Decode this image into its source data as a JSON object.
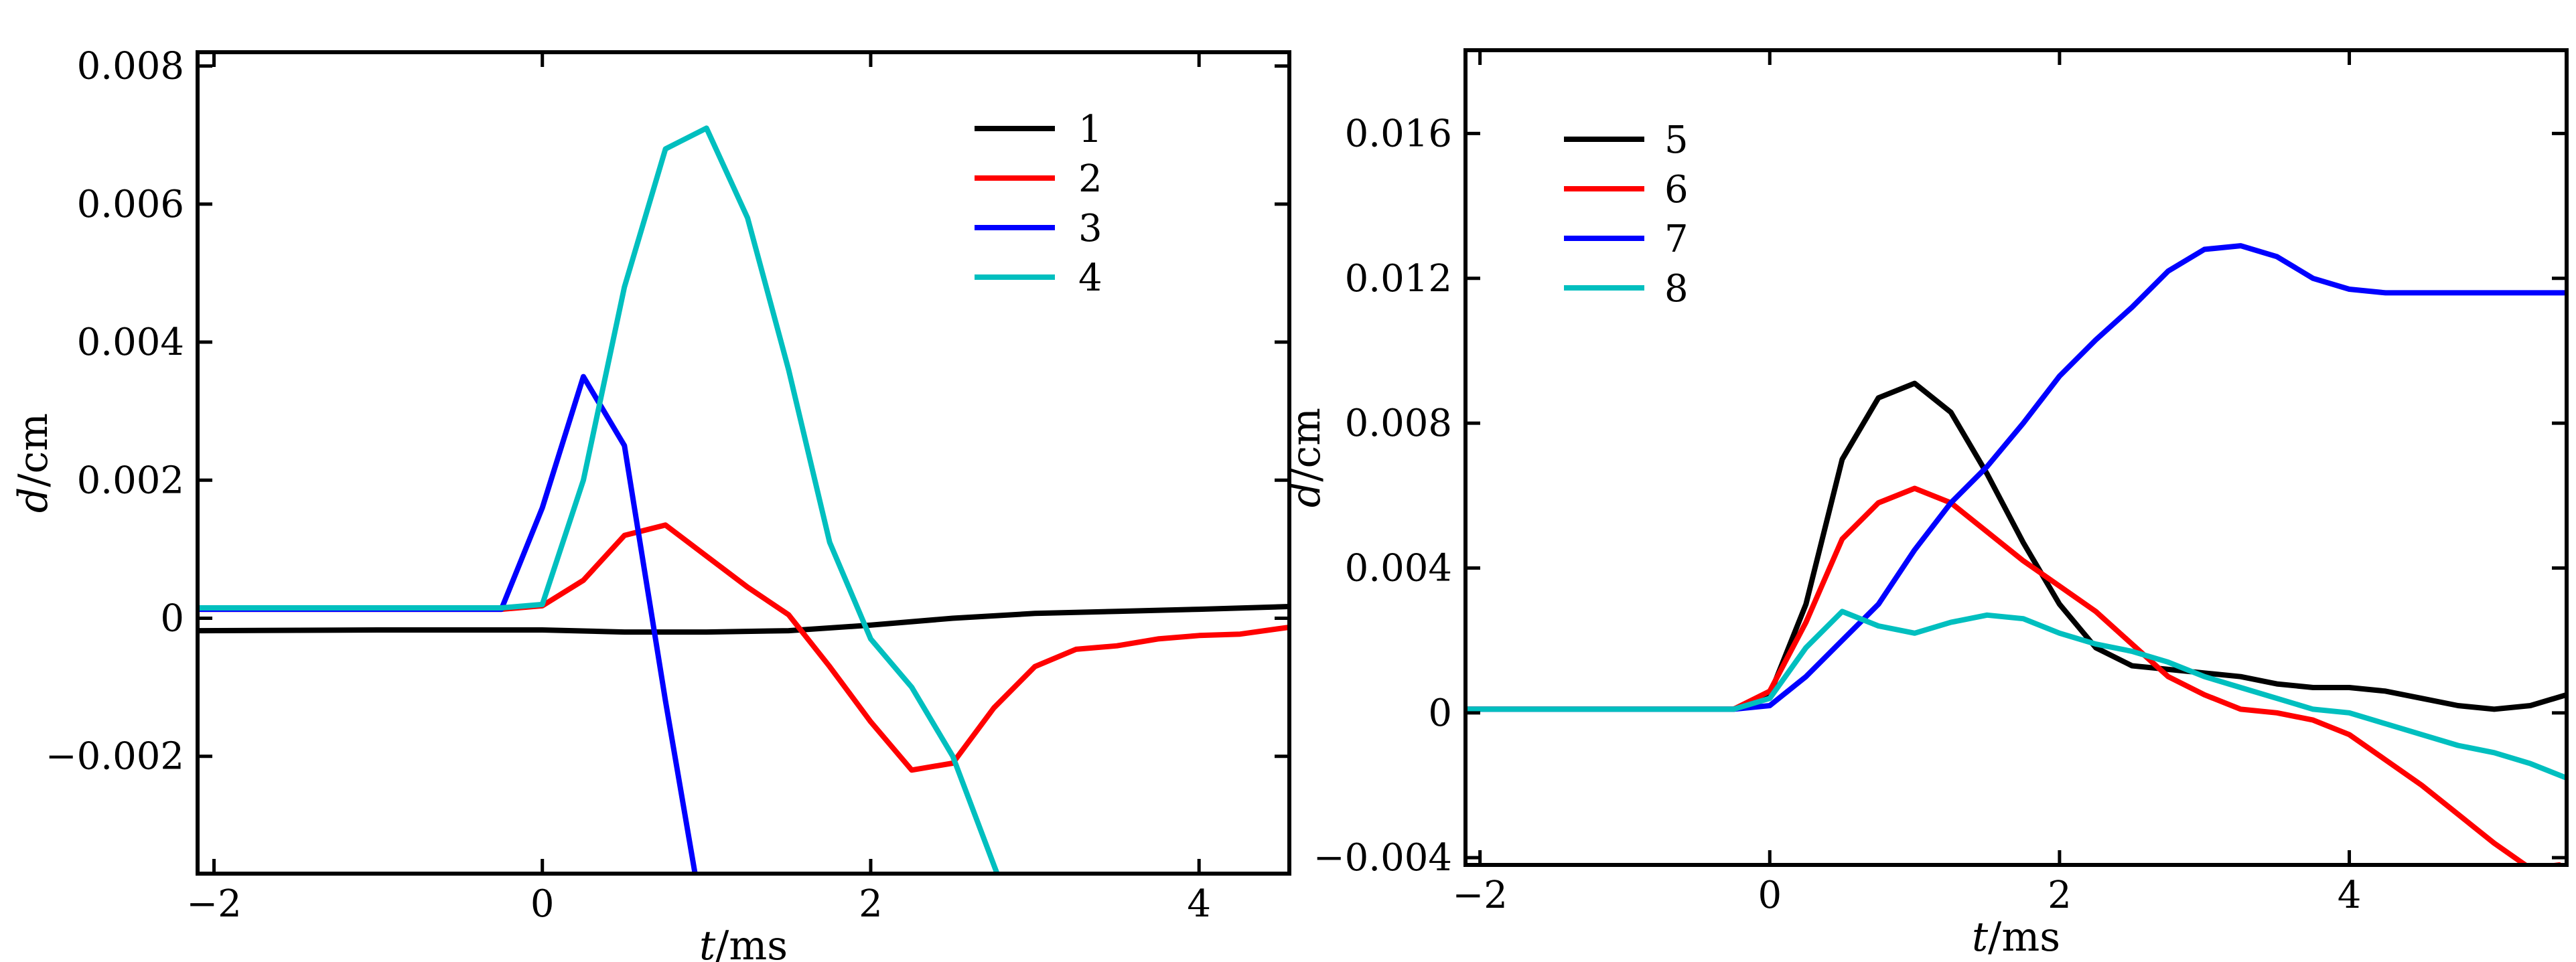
{
  "chart_data": [
    {
      "type": "line",
      "xlabel": "t/ms",
      "ylabel": "d/cm",
      "xlim": [
        -2.1,
        4.55
      ],
      "ylim": [
        -0.0037,
        0.0082
      ],
      "xticks": [
        -2,
        0,
        2,
        4
      ],
      "xtick_labels": [
        "−2",
        "0",
        "2",
        "4"
      ],
      "yticks": [
        -0.002,
        0,
        0.002,
        0.004,
        0.006,
        0.008
      ],
      "ytick_labels": [
        "−0.002",
        "0",
        "0.002",
        "0.004",
        "0.006",
        "0.008"
      ],
      "legend_position": "top-right",
      "series": [
        {
          "name": "1",
          "color": "#000000",
          "x": [
            -2.1,
            -1,
            0,
            0.5,
            1,
            1.5,
            2,
            2.5,
            3,
            3.5,
            4,
            4.55
          ],
          "y": [
            -0.00018,
            -0.00017,
            -0.00017,
            -0.0002,
            -0.0002,
            -0.00018,
            -0.0001,
            0.0,
            7e-05,
            0.0001,
            0.00013,
            0.00017
          ]
        },
        {
          "name": "2",
          "color": "#ff0000",
          "x": [
            -2.1,
            -1,
            -0.25,
            0,
            0.25,
            0.5,
            0.75,
            1,
            1.25,
            1.5,
            1.75,
            2,
            2.25,
            2.5,
            2.75,
            3,
            3.25,
            3.5,
            3.75,
            4,
            4.25,
            4.55
          ],
          "y": [
            0.00013,
            0.00013,
            0.00013,
            0.00018,
            0.00055,
            0.0012,
            0.00135,
            0.0009,
            0.00045,
            5e-05,
            -0.0007,
            -0.0015,
            -0.0022,
            -0.0021,
            -0.0013,
            -0.0007,
            -0.00045,
            -0.0004,
            -0.0003,
            -0.00025,
            -0.00023,
            -0.00013
          ]
        },
        {
          "name": "3",
          "color": "#0000ff",
          "x": [
            -2.1,
            -1,
            -0.25,
            0,
            0.25,
            0.5,
            0.75,
            0.93
          ],
          "y": [
            0.00013,
            0.00013,
            0.00013,
            0.0016,
            0.0035,
            0.0025,
            -0.0012,
            -0.0037
          ]
        },
        {
          "name": "4",
          "color": "#00bfbf",
          "x": [
            -2.1,
            -1,
            -0.25,
            0,
            0.25,
            0.5,
            0.75,
            1,
            1.25,
            1.5,
            1.75,
            2,
            2.25,
            2.5,
            2.77
          ],
          "y": [
            0.00015,
            0.00015,
            0.00015,
            0.0002,
            0.002,
            0.0048,
            0.0068,
            0.0071,
            0.0058,
            0.0036,
            0.0011,
            -0.0003,
            -0.001,
            -0.002,
            -0.0037
          ]
        }
      ]
    },
    {
      "type": "line",
      "xlabel": "t/ms",
      "ylabel": "d/cm",
      "xlim": [
        -2.1,
        5.5
      ],
      "ylim": [
        -0.0042,
        0.0183
      ],
      "xticks": [
        -2,
        0,
        2,
        4
      ],
      "xtick_labels": [
        "−2",
        "0",
        "2",
        "4"
      ],
      "yticks": [
        -0.004,
        0,
        0.004,
        0.008,
        0.012,
        0.016
      ],
      "ytick_labels": [
        "−0.004",
        "0",
        "0.004",
        "0.008",
        "0.012",
        "0.016"
      ],
      "legend_position": "top-left",
      "series": [
        {
          "name": "5",
          "color": "#000000",
          "x": [
            -2.1,
            -1,
            -0.25,
            0,
            0.25,
            0.5,
            0.75,
            1,
            1.25,
            1.5,
            1.75,
            2,
            2.25,
            2.5,
            2.75,
            3,
            3.25,
            3.5,
            3.75,
            4,
            4.25,
            4.5,
            4.75,
            5,
            5.25,
            5.5
          ],
          "y": [
            0.0001,
            0.0001,
            0.0001,
            0.0005,
            0.003,
            0.007,
            0.0087,
            0.0091,
            0.0083,
            0.0066,
            0.0047,
            0.003,
            0.0018,
            0.0013,
            0.0012,
            0.0011,
            0.001,
            0.0008,
            0.0007,
            0.0007,
            0.0006,
            0.0004,
            0.0002,
            0.0001,
            0.0002,
            0.0005
          ]
        },
        {
          "name": "6",
          "color": "#ff0000",
          "x": [
            -2.1,
            -1,
            -0.25,
            0,
            0.25,
            0.5,
            0.75,
            1,
            1.25,
            1.5,
            1.75,
            2,
            2.25,
            2.5,
            2.75,
            3,
            3.25,
            3.5,
            3.75,
            4,
            4.25,
            4.5,
            4.75,
            5,
            5.25,
            5.45
          ],
          "y": [
            0.0001,
            0.0001,
            0.0001,
            0.0006,
            0.0025,
            0.0048,
            0.0058,
            0.0062,
            0.0058,
            0.005,
            0.0042,
            0.0035,
            0.0028,
            0.0019,
            0.001,
            0.0005,
            0.0001,
            0.0,
            -0.0002,
            -0.0006,
            -0.0013,
            -0.002,
            -0.0028,
            -0.0036,
            -0.0043,
            -0.0042
          ]
        },
        {
          "name": "7",
          "color": "#0000ff",
          "x": [
            -2.1,
            -1,
            -0.25,
            0,
            0.25,
            0.5,
            0.75,
            1,
            1.25,
            1.5,
            1.75,
            2,
            2.25,
            2.5,
            2.75,
            3,
            3.25,
            3.5,
            3.75,
            4,
            4.25,
            4.5,
            4.75,
            5,
            5.25,
            5.5
          ],
          "y": [
            0.0001,
            0.0001,
            0.0001,
            0.0002,
            0.001,
            0.002,
            0.003,
            0.0045,
            0.0058,
            0.0068,
            0.008,
            0.0093,
            0.0103,
            0.0112,
            0.0122,
            0.0128,
            0.0129,
            0.0126,
            0.012,
            0.0117,
            0.0116,
            0.0116,
            0.0116,
            0.0116,
            0.0116,
            0.0116
          ]
        },
        {
          "name": "8",
          "color": "#00bfbf",
          "x": [
            -2.1,
            -1,
            -0.25,
            0,
            0.25,
            0.5,
            0.75,
            1,
            1.25,
            1.5,
            1.75,
            2,
            2.25,
            2.5,
            2.75,
            3,
            3.25,
            3.5,
            3.75,
            4,
            4.25,
            4.5,
            4.75,
            5,
            5.25,
            5.5
          ],
          "y": [
            0.0001,
            0.0001,
            0.0001,
            0.0004,
            0.0018,
            0.0028,
            0.0024,
            0.0022,
            0.0025,
            0.0027,
            0.0026,
            0.0022,
            0.0019,
            0.0017,
            0.0014,
            0.001,
            0.0007,
            0.0004,
            0.0001,
            0.0,
            -0.0003,
            -0.0006,
            -0.0009,
            -0.0011,
            -0.0014,
            -0.0018
          ]
        }
      ]
    }
  ]
}
